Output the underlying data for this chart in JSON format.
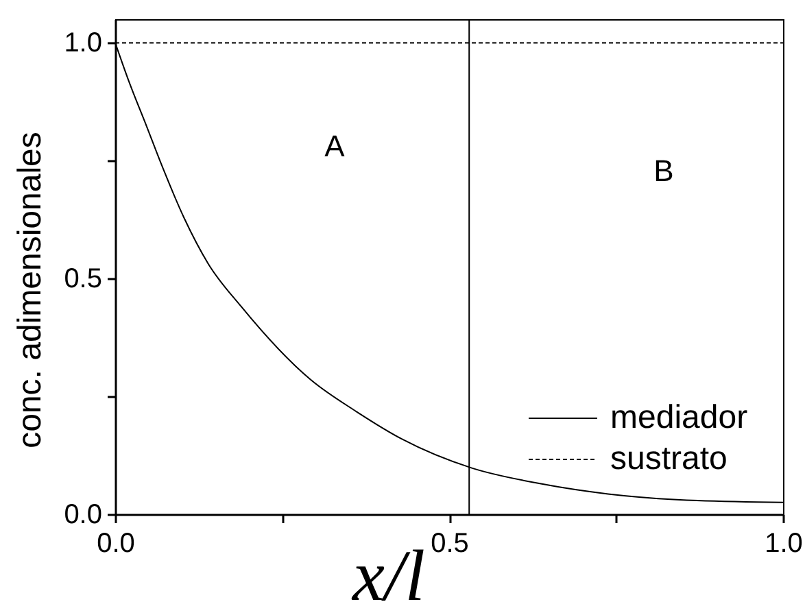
{
  "chart_data": {
    "type": "line",
    "xlabel": "x/l",
    "ylabel": "conc. adimensionales",
    "xlim": [
      0,
      1.0
    ],
    "ylim": [
      0,
      1.05
    ],
    "xticks": [
      {
        "value": 0,
        "label": "0.0"
      },
      {
        "value": 0.25,
        "label": null
      },
      {
        "value": 0.5,
        "label": "0.5"
      },
      {
        "value": 0.75,
        "label": null
      },
      {
        "value": 1.0,
        "label": "1.0"
      }
    ],
    "yticks": [
      {
        "value": 0,
        "label": "0.0"
      },
      {
        "value": 0.25,
        "label": null
      },
      {
        "value": 0.5,
        "label": "0.5"
      },
      {
        "value": 0.75,
        "label": null
      },
      {
        "value": 1.0,
        "label": "1.0"
      }
    ],
    "series": [
      {
        "name": "mediador",
        "color": "#000000",
        "line_style": "solid",
        "x": [
          0,
          0.02,
          0.047,
          0.067,
          0.103,
          0.139,
          0.189,
          0.293,
          0.362,
          0.43,
          0.534,
          0.636,
          0.738,
          0.841,
          1.0
        ],
        "values": [
          1.0,
          0.92,
          0.823,
          0.75,
          0.629,
          0.532,
          0.44,
          0.285,
          0.217,
          0.159,
          0.098,
          0.065,
          0.043,
          0.031,
          0.025
        ]
      },
      {
        "name": "sustrato",
        "color": "#000000",
        "line_style": "dashed",
        "x": [
          0,
          1.0
        ],
        "values": [
          1.0,
          1.0
        ]
      }
    ],
    "ref_lines": [
      {
        "axis": "x",
        "value": 0.53,
        "color": "#000000"
      }
    ],
    "annotations": [
      "A",
      "B"
    ],
    "legend": "bottom right"
  }
}
